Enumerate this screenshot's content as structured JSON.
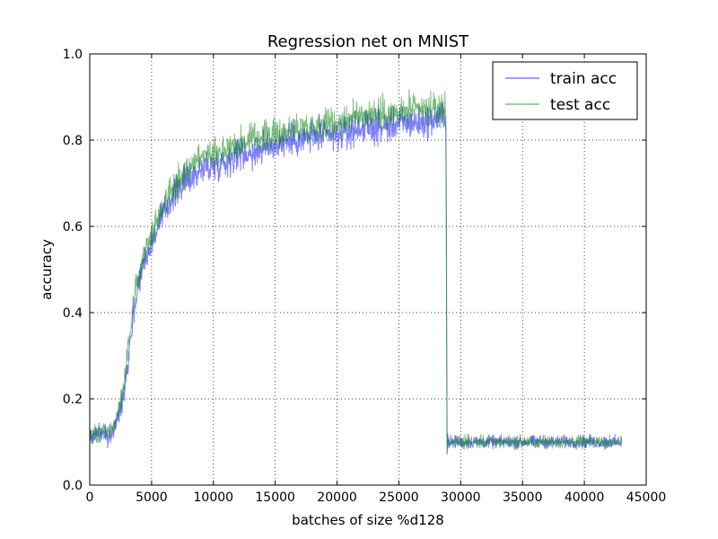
{
  "chart_data": {
    "type": "line",
    "title": "Regression net on MNIST",
    "xlabel": "batches of size %d128",
    "ylabel": "accuracy",
    "xlim": [
      0,
      45000
    ],
    "ylim": [
      0.0,
      1.0
    ],
    "xticks": [
      0,
      5000,
      10000,
      15000,
      20000,
      25000,
      30000,
      35000,
      40000,
      45000
    ],
    "xtick_labels": [
      "0",
      "5000",
      "10000",
      "15000",
      "20000",
      "25000",
      "30000",
      "35000",
      "40000",
      "45000"
    ],
    "yticks": [
      0.0,
      0.2,
      0.4,
      0.6,
      0.8,
      1.0
    ],
    "ytick_labels": [
      "0.0",
      "0.2",
      "0.4",
      "0.6",
      "0.8",
      "1.0"
    ],
    "grid": true,
    "legend_position": "top-right",
    "series": [
      {
        "name": "train acc",
        "color": "#0000ff",
        "x": [
          0,
          500,
          1000,
          1500,
          2000,
          2500,
          3000,
          3500,
          4000,
          4500,
          5000,
          5500,
          6000,
          6500,
          7000,
          7500,
          8000,
          8500,
          9000,
          9500,
          10000,
          11000,
          12000,
          13000,
          14000,
          15000,
          16000,
          17000,
          18000,
          19000,
          20000,
          21000,
          22000,
          23000,
          24000,
          25000,
          26000,
          27000,
          28000,
          28800,
          28900,
          29500,
          30000,
          31000,
          32000,
          33000,
          34000,
          35000,
          36000,
          37000,
          38000,
          39000,
          40000,
          41000,
          42000,
          43000
        ],
        "y": [
          0.11,
          0.12,
          0.12,
          0.11,
          0.13,
          0.18,
          0.27,
          0.39,
          0.48,
          0.53,
          0.56,
          0.6,
          0.63,
          0.66,
          0.68,
          0.7,
          0.71,
          0.72,
          0.73,
          0.74,
          0.74,
          0.75,
          0.77,
          0.77,
          0.78,
          0.79,
          0.8,
          0.8,
          0.81,
          0.81,
          0.81,
          0.82,
          0.83,
          0.83,
          0.83,
          0.84,
          0.84,
          0.84,
          0.85,
          0.86,
          0.1,
          0.1,
          0.1,
          0.1,
          0.1,
          0.1,
          0.1,
          0.1,
          0.1,
          0.1,
          0.1,
          0.1,
          0.1,
          0.1,
          0.1,
          0.1
        ]
      },
      {
        "name": "test acc",
        "color": "#008000",
        "x": [
          0,
          500,
          1000,
          1500,
          2000,
          2500,
          3000,
          3500,
          4000,
          4500,
          5000,
          5500,
          6000,
          6500,
          7000,
          7500,
          8000,
          8500,
          9000,
          9500,
          10000,
          11000,
          12000,
          13000,
          14000,
          15000,
          16000,
          17000,
          18000,
          19000,
          20000,
          21000,
          22000,
          23000,
          24000,
          25000,
          26000,
          27000,
          28000,
          28800,
          28900,
          29500,
          30000,
          31000,
          32000,
          33000,
          34000,
          35000,
          36000,
          37000,
          38000,
          39000,
          40000,
          41000,
          42000,
          43000
        ],
        "y": [
          0.11,
          0.12,
          0.12,
          0.12,
          0.14,
          0.19,
          0.29,
          0.41,
          0.5,
          0.55,
          0.58,
          0.62,
          0.65,
          0.68,
          0.7,
          0.72,
          0.73,
          0.75,
          0.76,
          0.77,
          0.77,
          0.78,
          0.79,
          0.8,
          0.81,
          0.81,
          0.82,
          0.83,
          0.83,
          0.84,
          0.84,
          0.85,
          0.86,
          0.86,
          0.86,
          0.86,
          0.87,
          0.87,
          0.87,
          0.87,
          0.1,
          0.1,
          0.1,
          0.1,
          0.1,
          0.1,
          0.1,
          0.1,
          0.1,
          0.1,
          0.1,
          0.1,
          0.1,
          0.1,
          0.1,
          0.1
        ]
      }
    ]
  }
}
